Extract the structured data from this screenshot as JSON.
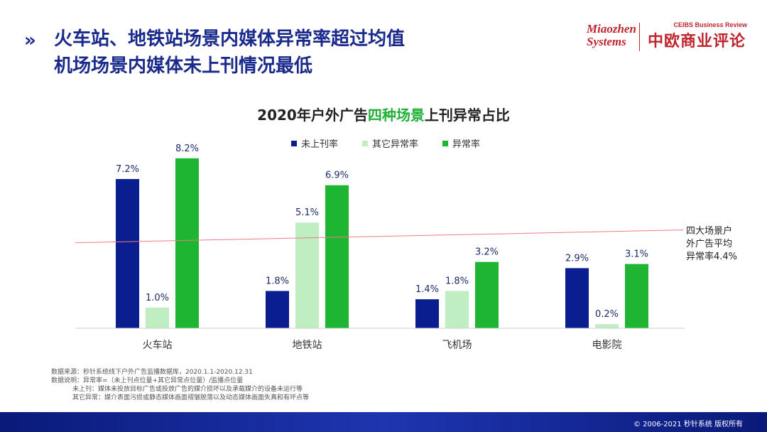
{
  "headline": {
    "line1": "火车站、地铁站场景内媒体异常率超过均值",
    "line2": "机场场景内媒体未上刊情况最低"
  },
  "logos": {
    "miaozhen_line1": "Miaozhen",
    "miaozhen_line2": "Systems",
    "ceibs_en": "CEIBS Business Review",
    "ceibs_cn": "中欧商业评论"
  },
  "chart_data": {
    "type": "bar",
    "title_pre": "2020年户外广告",
    "title_highlight": "四种场景",
    "title_post": "上刊异常占比",
    "categories": [
      "火车站",
      "地铁站",
      "飞机场",
      "电影院"
    ],
    "series": [
      {
        "name": "未上刊率",
        "color": "#0b1e8f",
        "values": [
          7.2,
          1.8,
          1.4,
          2.9
        ],
        "labels": [
          "7.2%",
          "1.8%",
          "1.4%",
          "2.9%"
        ]
      },
      {
        "name": "其它异常率",
        "color": "#bfeec3",
        "values": [
          1.0,
          5.1,
          1.8,
          0.2
        ],
        "labels": [
          "1.0%",
          "5.1%",
          "1.8%",
          "0.2%"
        ]
      },
      {
        "name": "异常率",
        "color": "#1db532",
        "values": [
          8.2,
          6.9,
          3.2,
          3.1
        ],
        "labels": [
          "8.2%",
          "6.9%",
          "3.2%",
          "3.1%"
        ]
      }
    ],
    "ylim": [
      0,
      10
    ],
    "average": {
      "value": 4.4,
      "label_line1": "四大场景户",
      "label_line2": "外广告平均",
      "label_line3": "异常率4.4%",
      "color": "#f07a86"
    },
    "label_color": "#1a2a6c"
  },
  "notes": {
    "source": "数据来源：秒针系统线下户外广告监播数据库，2020.1.1-2020.12.31",
    "explain": "数据说明：异常率=（未上刊点位量+其它异常点位量）/监播点位量",
    "def1": "未上刊：媒体未投放目标广告或投放广告的媒介损坏以及承载媒介的设备未运行等",
    "def2": "其它异常：媒介表面污损或静态媒体画面褶皱脱落以及动态媒体画面失真和有坏点等"
  },
  "footer": {
    "copyright": "© 2006-2021  秒针系统 版权所有"
  }
}
